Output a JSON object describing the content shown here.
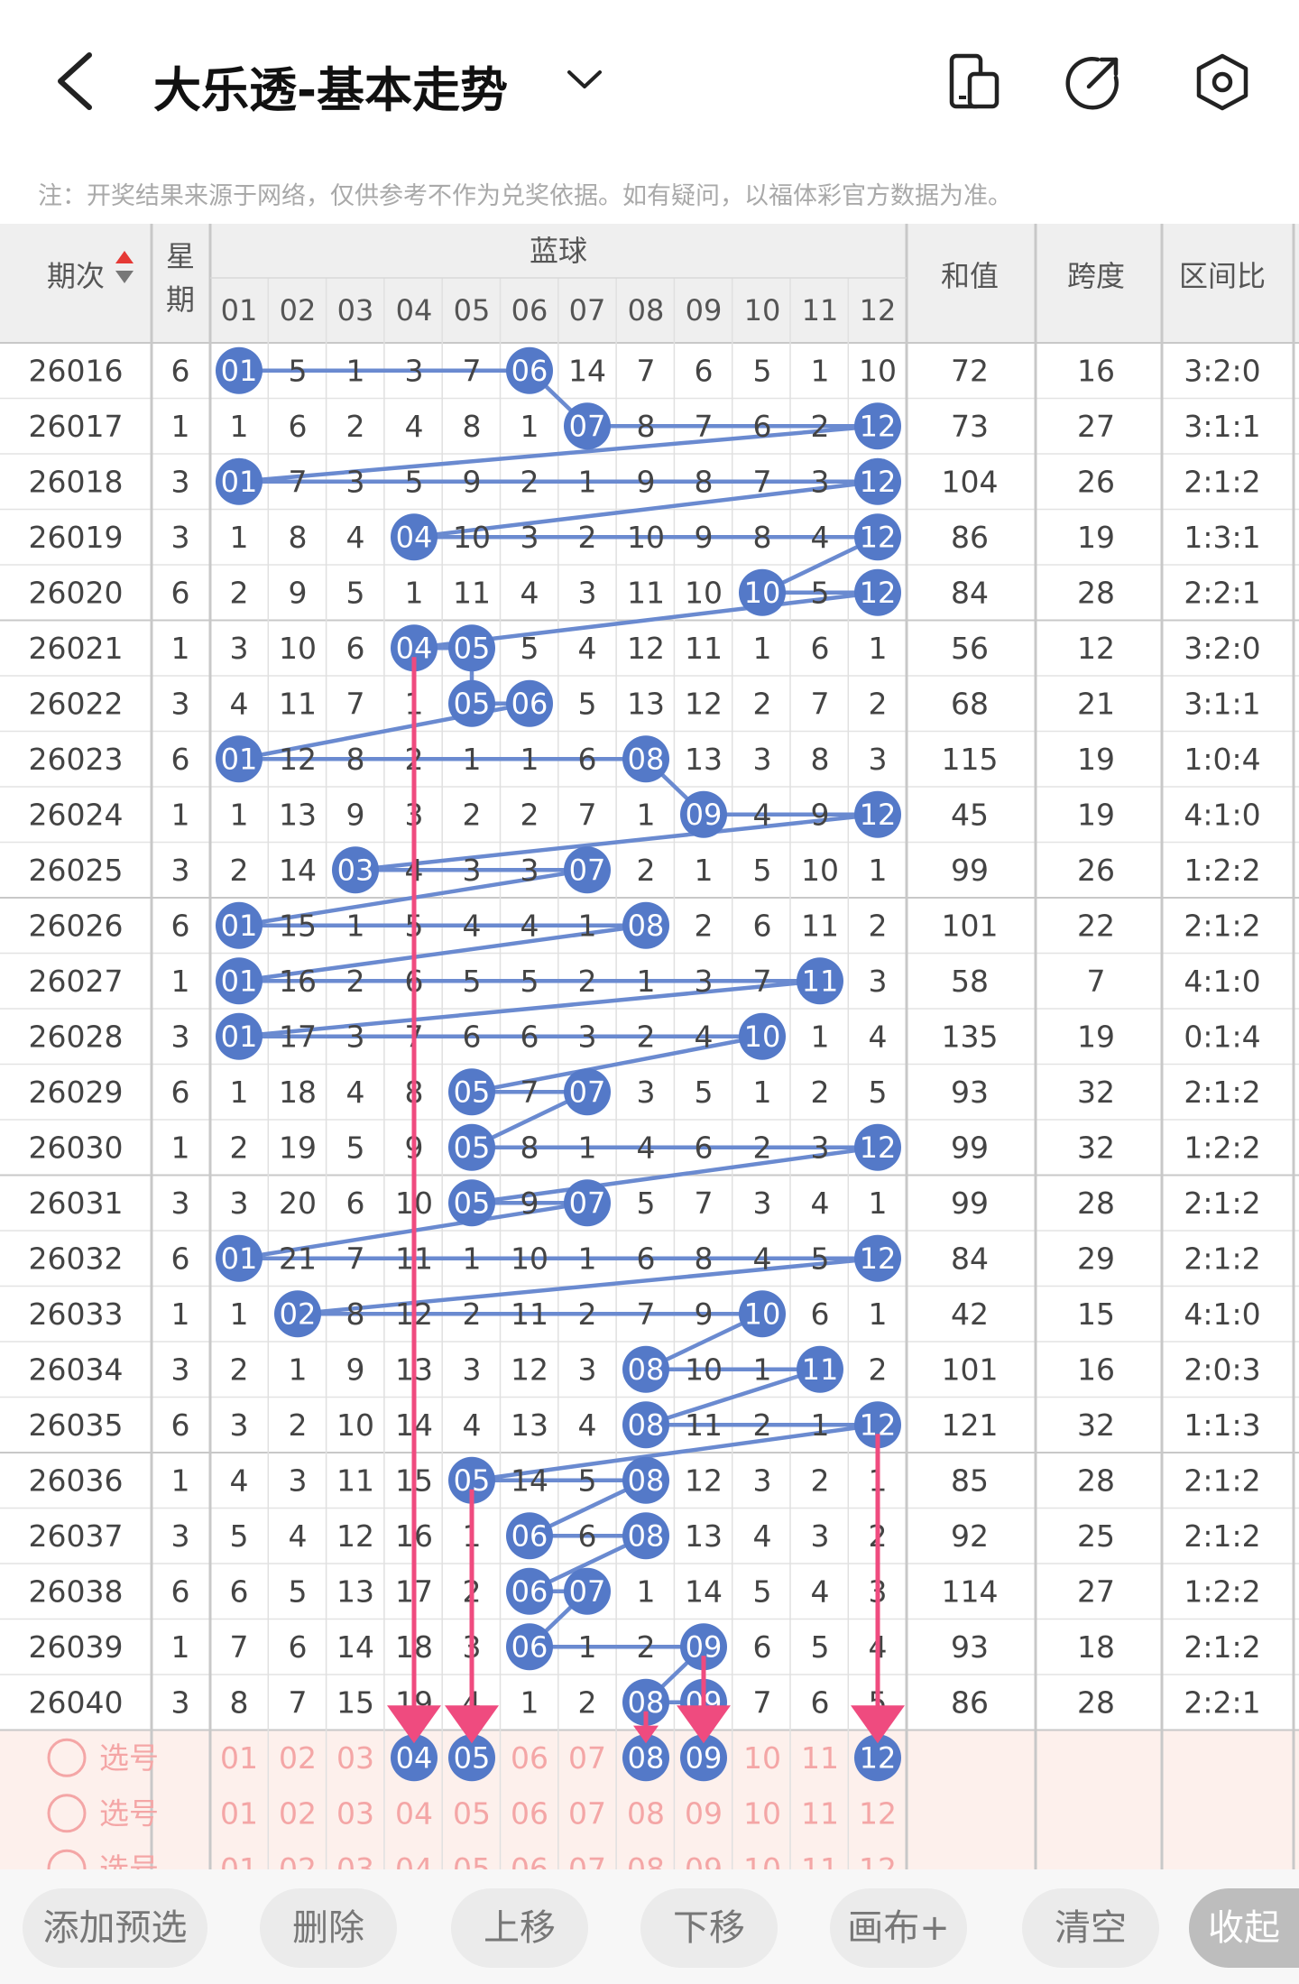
{
  "header": {
    "title": "大乐透-基本走势",
    "note": "注：开奖结果来源于网络，仅供参考不作为兑奖依据。如有疑问，以福体彩官方数据为准。"
  },
  "table": {
    "col_period": "期次",
    "col_week": "星期",
    "col_blue": "蓝球",
    "col_sum": "和值",
    "col_span": "跨度",
    "col_ratio": "区间比",
    "ball_labels": [
      "01",
      "02",
      "03",
      "04",
      "05",
      "06",
      "07",
      "08",
      "09",
      "10",
      "11",
      "12"
    ],
    "rows": [
      {
        "period": "26016",
        "week": "6",
        "cells": [
          0,
          5,
          1,
          3,
          7,
          0,
          14,
          7,
          6,
          5,
          1,
          10
        ],
        "sum": "72",
        "span": "16",
        "ratio": "3:2:0"
      },
      {
        "period": "26017",
        "week": "1",
        "cells": [
          1,
          6,
          2,
          4,
          8,
          1,
          0,
          8,
          7,
          6,
          2,
          0
        ],
        "sum": "73",
        "span": "27",
        "ratio": "3:1:1"
      },
      {
        "period": "26018",
        "week": "3",
        "cells": [
          0,
          7,
          3,
          5,
          9,
          2,
          1,
          9,
          8,
          7,
          3,
          0
        ],
        "sum": "104",
        "span": "26",
        "ratio": "2:1:2"
      },
      {
        "period": "26019",
        "week": "3",
        "cells": [
          1,
          8,
          4,
          0,
          10,
          3,
          2,
          10,
          9,
          8,
          4,
          0
        ],
        "sum": "86",
        "span": "19",
        "ratio": "1:3:1"
      },
      {
        "period": "26020",
        "week": "6",
        "cells": [
          2,
          9,
          5,
          1,
          11,
          4,
          3,
          11,
          10,
          0,
          5,
          0
        ],
        "sum": "84",
        "span": "28",
        "ratio": "2:2:1"
      },
      {
        "period": "26021",
        "week": "1",
        "cells": [
          3,
          10,
          6,
          0,
          0,
          5,
          4,
          12,
          11,
          1,
          6,
          1
        ],
        "sum": "56",
        "span": "12",
        "ratio": "3:2:0"
      },
      {
        "period": "26022",
        "week": "3",
        "cells": [
          4,
          11,
          7,
          1,
          0,
          0,
          5,
          13,
          12,
          2,
          7,
          2
        ],
        "sum": "68",
        "span": "21",
        "ratio": "3:1:1"
      },
      {
        "period": "26023",
        "week": "6",
        "cells": [
          0,
          12,
          8,
          2,
          1,
          1,
          6,
          0,
          13,
          3,
          8,
          3
        ],
        "sum": "115",
        "span": "19",
        "ratio": "1:0:4"
      },
      {
        "period": "26024",
        "week": "1",
        "cells": [
          1,
          13,
          9,
          3,
          2,
          2,
          7,
          1,
          0,
          4,
          9,
          0
        ],
        "sum": "45",
        "span": "19",
        "ratio": "4:1:0"
      },
      {
        "period": "26025",
        "week": "3",
        "cells": [
          2,
          14,
          0,
          4,
          3,
          3,
          0,
          2,
          1,
          5,
          10,
          1
        ],
        "sum": "99",
        "span": "26",
        "ratio": "1:2:2"
      },
      {
        "period": "26026",
        "week": "6",
        "cells": [
          0,
          15,
          1,
          5,
          4,
          4,
          1,
          0,
          2,
          6,
          11,
          2
        ],
        "sum": "101",
        "span": "22",
        "ratio": "2:1:2"
      },
      {
        "period": "26027",
        "week": "1",
        "cells": [
          0,
          16,
          2,
          6,
          5,
          5,
          2,
          1,
          3,
          7,
          0,
          3
        ],
        "sum": "58",
        "span": "7",
        "ratio": "4:1:0"
      },
      {
        "period": "26028",
        "week": "3",
        "cells": [
          0,
          17,
          3,
          7,
          6,
          6,
          3,
          2,
          4,
          0,
          1,
          4
        ],
        "sum": "135",
        "span": "19",
        "ratio": "0:1:4"
      },
      {
        "period": "26029",
        "week": "6",
        "cells": [
          1,
          18,
          4,
          8,
          0,
          7,
          0,
          3,
          5,
          1,
          2,
          5
        ],
        "sum": "93",
        "span": "32",
        "ratio": "2:1:2"
      },
      {
        "period": "26030",
        "week": "1",
        "cells": [
          2,
          19,
          5,
          9,
          0,
          8,
          1,
          4,
          6,
          2,
          3,
          0
        ],
        "sum": "99",
        "span": "32",
        "ratio": "1:2:2"
      },
      {
        "period": "26031",
        "week": "3",
        "cells": [
          3,
          20,
          6,
          10,
          0,
          9,
          0,
          5,
          7,
          3,
          4,
          1
        ],
        "sum": "99",
        "span": "28",
        "ratio": "2:1:2"
      },
      {
        "period": "26032",
        "week": "6",
        "cells": [
          0,
          21,
          7,
          11,
          1,
          10,
          1,
          6,
          8,
          4,
          5,
          0
        ],
        "sum": "84",
        "span": "29",
        "ratio": "2:1:2"
      },
      {
        "period": "26033",
        "week": "1",
        "cells": [
          1,
          0,
          8,
          12,
          2,
          11,
          2,
          7,
          9,
          0,
          6,
          1
        ],
        "sum": "42",
        "span": "15",
        "ratio": "4:1:0"
      },
      {
        "period": "26034",
        "week": "3",
        "cells": [
          2,
          1,
          9,
          13,
          3,
          12,
          3,
          0,
          10,
          1,
          0,
          2
        ],
        "sum": "101",
        "span": "16",
        "ratio": "2:0:3"
      },
      {
        "period": "26035",
        "week": "6",
        "cells": [
          3,
          2,
          10,
          14,
          4,
          13,
          4,
          0,
          11,
          2,
          1,
          0
        ],
        "sum": "121",
        "span": "32",
        "ratio": "1:1:3"
      },
      {
        "period": "26036",
        "week": "1",
        "cells": [
          4,
          3,
          11,
          15,
          0,
          14,
          5,
          0,
          12,
          3,
          2,
          1
        ],
        "sum": "85",
        "span": "28",
        "ratio": "2:1:2"
      },
      {
        "period": "26037",
        "week": "3",
        "cells": [
          5,
          4,
          12,
          16,
          1,
          0,
          6,
          0,
          13,
          4,
          3,
          2
        ],
        "sum": "92",
        "span": "25",
        "ratio": "2:1:2"
      },
      {
        "period": "26038",
        "week": "6",
        "cells": [
          6,
          5,
          13,
          17,
          2,
          0,
          0,
          1,
          14,
          5,
          4,
          3
        ],
        "sum": "114",
        "span": "27",
        "ratio": "1:2:2"
      },
      {
        "period": "26039",
        "week": "1",
        "cells": [
          7,
          6,
          14,
          18,
          3,
          0,
          1,
          2,
          0,
          6,
          5,
          4
        ],
        "sum": "93",
        "span": "18",
        "ratio": "2:1:2"
      },
      {
        "period": "26040",
        "week": "3",
        "cells": [
          8,
          7,
          15,
          19,
          4,
          1,
          2,
          0,
          0,
          7,
          6,
          5
        ],
        "sum": "86",
        "span": "28",
        "ratio": "2:2:1"
      }
    ],
    "select_label": "选号",
    "selection_rows": [
      {
        "selected": [
          4,
          5,
          8,
          9,
          12
        ]
      },
      {
        "selected": []
      },
      {
        "selected": []
      }
    ],
    "arrows": [
      {
        "column": 4,
        "from_period": "26021"
      },
      {
        "column": 5,
        "from_period": "26036"
      },
      {
        "column": 8,
        "from_period": "26040"
      },
      {
        "column": 9,
        "from_period": "26039"
      },
      {
        "column": 12,
        "from_period": "26035"
      }
    ]
  },
  "toolbar": {
    "add": "添加预选",
    "delete": "删除",
    "up": "上移",
    "down": "下移",
    "canvas": "画布+",
    "clear": "清空",
    "collapse": "收起"
  },
  "colors": {
    "ball": "#5479c8",
    "line": "#6a8ad0",
    "arrow": "#ef4b7f",
    "select_bg": "#fdf0ec",
    "select_text": "#f4a6a6",
    "header_bg": "#efefef"
  }
}
